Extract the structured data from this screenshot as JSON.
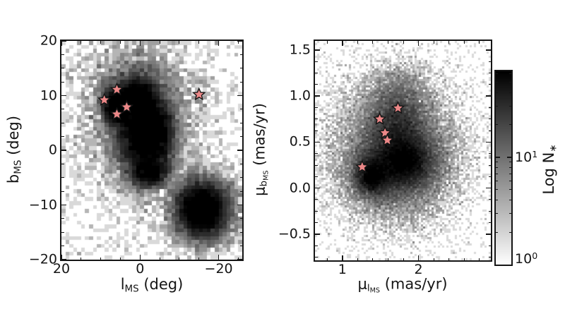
{
  "page": {
    "background": "#ffffff"
  },
  "colors": {
    "star_fill": "#ec8888",
    "star_edge": "#151515",
    "frame": "#151515",
    "text": "#151515",
    "colormap_low": "#ffffff",
    "colormap_high": "#000000"
  },
  "left_plot": {
    "xlabel": {
      "base": "l",
      "sub": "MS",
      "rest": " (deg)"
    },
    "ylabel": {
      "base": "b",
      "sub": "MS",
      "rest": " (deg)"
    },
    "xtick_labels": [
      "20",
      "0",
      "−20"
    ],
    "ytick_labels": [
      "20",
      "10",
      "0",
      "−10",
      "−20"
    ]
  },
  "right_plot": {
    "xlabel": {
      "base": "μ",
      "sub": "l",
      "subsub": "MS",
      "rest": " (mas/yr)"
    },
    "ylabel": {
      "base": "μ",
      "sub": "b",
      "subsub": "MS",
      "rest": " (mas/yr)"
    },
    "xtick_labels": [
      "1",
      "2"
    ],
    "ytick_labels": [
      "1.5",
      "1.0",
      "0.5",
      "0.0",
      "−0.5"
    ]
  },
  "colorbar": {
    "label": {
      "base": "Log N",
      "sub": "∗"
    },
    "tick_top": {
      "base": "10",
      "sup": "1"
    },
    "tick_bottom": {
      "base": "10",
      "sup": "0"
    },
    "log_min": 0,
    "log_max": 1.8
  },
  "chart_data": [
    {
      "type": "heatmap",
      "panel": "left",
      "title": "",
      "xlabel": "l_MS (deg)",
      "ylabel": "b_MS (deg)",
      "xlim": [
        20,
        -26
      ],
      "ylim": [
        -20,
        20
      ],
      "xticks": [
        20,
        0,
        -20
      ],
      "yticks": [
        20,
        10,
        0,
        -10,
        -20
      ],
      "xminor_step": 5,
      "yminor_step": 2.5,
      "grid": false,
      "colormap": "Greys (log scale)",
      "bins": [
        46,
        56
      ],
      "n_samples": 40000,
      "seed": 42,
      "density_components": [
        {
          "name": "ms-main-band",
          "cx": 0.0,
          "cy": 4.0,
          "sx": 3.0,
          "sy": 4.5,
          "w": 1.0
        },
        {
          "name": "ms-upper-knot",
          "cx": 1.0,
          "cy": 9.5,
          "sx": 2.5,
          "sy": 1.6,
          "w": 0.4
        },
        {
          "name": "ms-left-ext",
          "cx": 6.0,
          "cy": 8.0,
          "sx": 1.8,
          "sy": 1.8,
          "w": 0.3
        },
        {
          "name": "ms-right-side",
          "cx": -4.5,
          "cy": 3.0,
          "sx": 2.2,
          "sy": 3.2,
          "w": 0.45
        },
        {
          "name": "ms-lower-arm",
          "cx": -2.5,
          "cy": -4.0,
          "sx": 2.2,
          "sy": 1.3,
          "w": 0.22
        },
        {
          "name": "smc-blob",
          "cx": -15.8,
          "cy": -10.8,
          "sx": 3.0,
          "sy": 2.4,
          "w": 0.8
        },
        {
          "name": "smc-skirt",
          "cx": -15.8,
          "cy": -10.8,
          "sx": 4.6,
          "sy": 3.6,
          "w": 0.25
        },
        {
          "name": "broad-bg",
          "cx": 0.0,
          "cy": 5.0,
          "sx": 8.0,
          "sy": 7.0,
          "w": 0.32
        },
        {
          "name": "top-bg",
          "cx": 1.0,
          "cy": 12.0,
          "sx": 7.0,
          "sy": 4.0,
          "w": 0.1
        },
        {
          "name": "uniform-bg",
          "uniform": true,
          "w": 0.07
        }
      ],
      "stars": [
        [
          5.9,
          11.1
        ],
        [
          9.1,
          9.2
        ],
        [
          3.4,
          7.9
        ],
        [
          5.9,
          6.6
        ],
        [
          -15.0,
          10.2
        ]
      ]
    },
    {
      "type": "heatmap",
      "panel": "right",
      "title": "",
      "xlabel": "μ_lMS (mas/yr)",
      "ylabel": "μ_bMS (mas/yr)",
      "xlim": [
        0.64,
        2.95
      ],
      "ylim": [
        -0.785,
        1.6
      ],
      "xticks": [
        1,
        2
      ],
      "yticks": [
        1.5,
        1.0,
        0.5,
        0.0,
        -0.5
      ],
      "xminor_step": 0.2,
      "yminor_step": 0.125,
      "grid": false,
      "colormap": "Greys (log scale)",
      "bins": [
        83,
        104
      ],
      "n_samples": 60000,
      "seed": 7,
      "density_components": [
        {
          "name": "halo",
          "cx": 1.7,
          "cy": 0.38,
          "sx": 0.42,
          "sy": 0.38,
          "w": 0.9
        },
        {
          "name": "mid",
          "cx": 1.75,
          "cy": 0.33,
          "sx": 0.27,
          "sy": 0.24,
          "w": 0.9
        },
        {
          "name": "dark-core",
          "cx": 1.83,
          "cy": 0.28,
          "sx": 0.17,
          "sy": 0.13,
          "w": 0.75
        },
        {
          "name": "left-knot",
          "cx": 1.38,
          "cy": 0.11,
          "sx": 0.1,
          "sy": 0.09,
          "w": 0.28
        },
        {
          "name": "left-lobe",
          "cx": 1.44,
          "cy": 0.16,
          "sx": 0.17,
          "sy": 0.14,
          "w": 0.45
        },
        {
          "name": "upper-column",
          "cx": 1.72,
          "cy": 0.62,
          "sx": 0.17,
          "sy": 0.2,
          "w": 0.45
        },
        {
          "name": "upper-top",
          "cx": 1.75,
          "cy": 0.98,
          "sx": 0.22,
          "sy": 0.18,
          "w": 0.18
        },
        {
          "name": "wide-skirt",
          "cx": 1.7,
          "cy": 0.45,
          "sx": 0.65,
          "sy": 0.55,
          "w": 0.22
        },
        {
          "name": "uniform-bg",
          "uniform": true,
          "w": 0.05
        }
      ],
      "stars": [
        [
          1.73,
          0.87
        ],
        [
          1.49,
          0.75
        ],
        [
          1.56,
          0.6
        ],
        [
          1.59,
          0.52
        ],
        [
          1.26,
          0.23
        ]
      ]
    }
  ]
}
